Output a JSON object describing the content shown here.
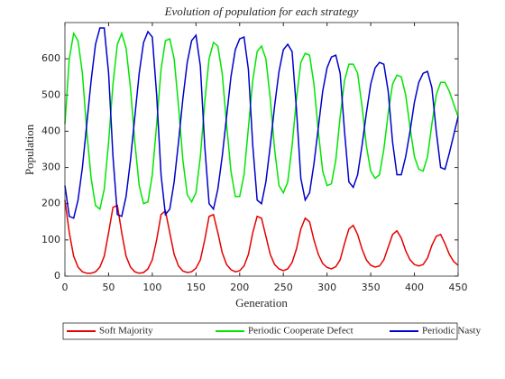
{
  "chart_data": {
    "type": "line",
    "title": "Evolution of population for each strategy",
    "x_label": "Generation",
    "y_label": "Population",
    "x": [
      0,
      5,
      10,
      15,
      20,
      25,
      30,
      35,
      40,
      45,
      50,
      55,
      60,
      65,
      70,
      75,
      80,
      85,
      90,
      95,
      100,
      105,
      110,
      115,
      120,
      125,
      130,
      135,
      140,
      145,
      150,
      155,
      160,
      165,
      170,
      175,
      180,
      185,
      190,
      195,
      200,
      205,
      210,
      215,
      220,
      225,
      230,
      235,
      240,
      245,
      250,
      255,
      260,
      265,
      270,
      275,
      280,
      285,
      290,
      295,
      300,
      305,
      310,
      315,
      320,
      325,
      330,
      335,
      340,
      345,
      350,
      355,
      360,
      365,
      370,
      375,
      380,
      385,
      390,
      395,
      400,
      405,
      410,
      415,
      420,
      425,
      430,
      435,
      440,
      445,
      450
    ],
    "series": [
      {
        "name": "Soft Majority",
        "color": "#e60000",
        "values": [
          210,
          120,
          55,
          25,
          12,
          8,
          8,
          12,
          25,
          55,
          120,
          190,
          195,
          120,
          55,
          25,
          12,
          8,
          10,
          20,
          45,
          100,
          170,
          180,
          120,
          60,
          28,
          14,
          10,
          12,
          22,
          45,
          100,
          165,
          170,
          120,
          65,
          32,
          18,
          12,
          15,
          28,
          60,
          120,
          165,
          160,
          110,
          60,
          32,
          20,
          15,
          20,
          38,
          75,
          130,
          160,
          150,
          100,
          60,
          35,
          24,
          20,
          26,
          45,
          90,
          130,
          140,
          115,
          75,
          45,
          30,
          25,
          28,
          45,
          80,
          115,
          125,
          105,
          70,
          45,
          32,
          28,
          32,
          50,
          85,
          110,
          115,
          90,
          60,
          40,
          30
        ]
      },
      {
        "name": "Periodic Cooperate Defect",
        "color": "#00e600",
        "values": [
          420,
          600,
          670,
          650,
          560,
          400,
          270,
          195,
          185,
          240,
          370,
          530,
          640,
          670,
          630,
          520,
          370,
          250,
          200,
          205,
          280,
          420,
          570,
          650,
          655,
          600,
          470,
          320,
          225,
          205,
          230,
          330,
          480,
          600,
          645,
          635,
          560,
          420,
          290,
          220,
          220,
          280,
          410,
          540,
          620,
          635,
          600,
          490,
          350,
          250,
          230,
          260,
          360,
          490,
          590,
          615,
          610,
          530,
          400,
          290,
          250,
          255,
          320,
          440,
          540,
          585,
          585,
          560,
          470,
          360,
          290,
          270,
          280,
          350,
          450,
          530,
          555,
          550,
          500,
          410,
          330,
          295,
          290,
          330,
          420,
          500,
          535,
          535,
          510,
          475,
          440
        ]
      },
      {
        "name": "Periodic Nasty",
        "color": "#0000cc",
        "values": [
          250,
          165,
          160,
          210,
          300,
          420,
          540,
          640,
          685,
          685,
          560,
          330,
          170,
          165,
          220,
          320,
          440,
          560,
          645,
          675,
          660,
          500,
          280,
          170,
          185,
          260,
          370,
          490,
          590,
          650,
          665,
          580,
          360,
          200,
          185,
          240,
          330,
          440,
          550,
          625,
          655,
          660,
          570,
          360,
          210,
          200,
          260,
          360,
          470,
          565,
          625,
          640,
          620,
          460,
          270,
          210,
          230,
          310,
          410,
          510,
          575,
          605,
          610,
          560,
          400,
          260,
          245,
          280,
          360,
          450,
          530,
          575,
          590,
          585,
          510,
          370,
          280,
          280,
          330,
          400,
          480,
          535,
          560,
          565,
          520,
          400,
          300,
          295,
          340,
          390,
          440
        ]
      }
    ],
    "xlim": [
      0,
      450
    ],
    "xticks": [
      0,
      50,
      100,
      150,
      200,
      250,
      300,
      350,
      400,
      450
    ],
    "ylim": [
      0,
      700
    ],
    "yticks": [
      0,
      100,
      200,
      300,
      400,
      500,
      600
    ],
    "grid": false,
    "legend": "bottom"
  }
}
